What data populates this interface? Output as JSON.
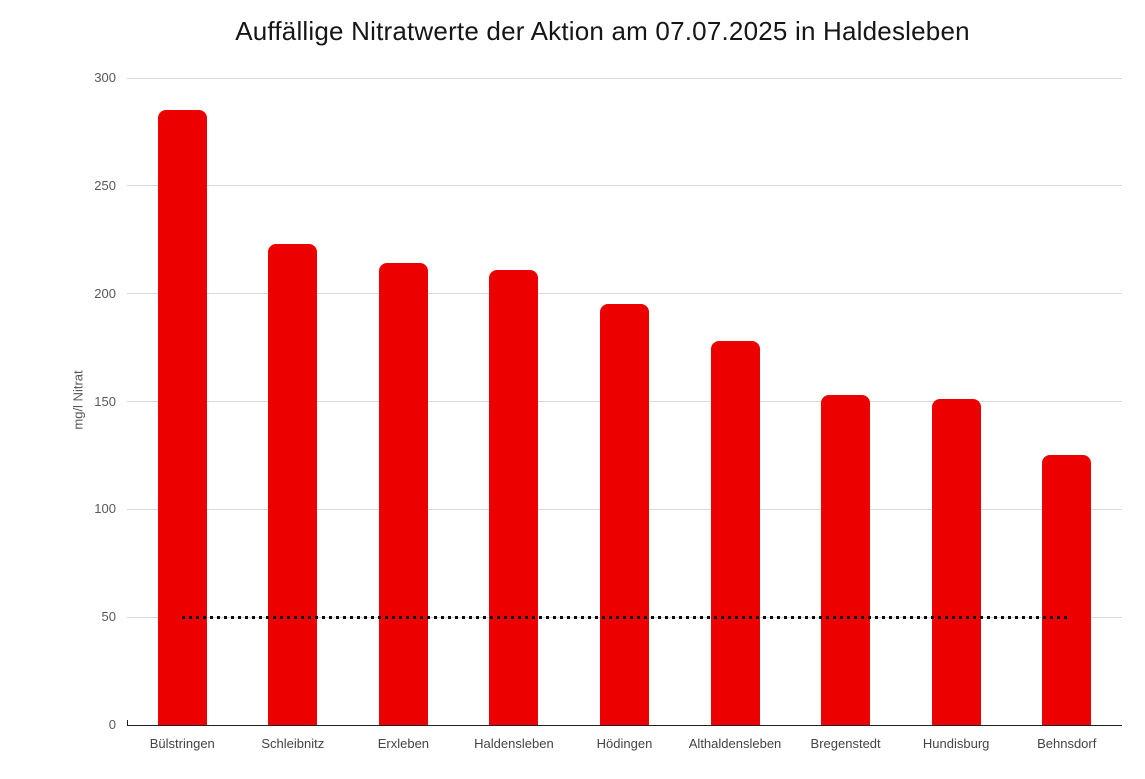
{
  "chart_data": {
    "type": "bar",
    "title": "Auffällige Nitratwerte der Aktion am 07.07.2025 in Haldesleben",
    "categories": [
      "Bülstringen",
      "Schleibnitz",
      "Erxleben",
      "Haldensleben",
      "Hödingen",
      "Althaldensleben",
      "Bregenstedt",
      "Hundisburg",
      "Behnsdorf"
    ],
    "values": [
      285,
      223,
      214,
      211,
      195,
      178,
      153,
      151,
      125
    ],
    "xlabel": "",
    "ylabel": "mg/l Nitrat",
    "ylim": [
      0,
      300
    ],
    "yticks": [
      0,
      50,
      100,
      150,
      200,
      250,
      300
    ],
    "grid": true,
    "legend": false,
    "bar_color": "#ec0000",
    "gridline_color": "#d9d9d9",
    "axis_color": "#202020",
    "reference_line": {
      "value": 50,
      "style": "dotted",
      "color": "#0b0b0b"
    }
  }
}
